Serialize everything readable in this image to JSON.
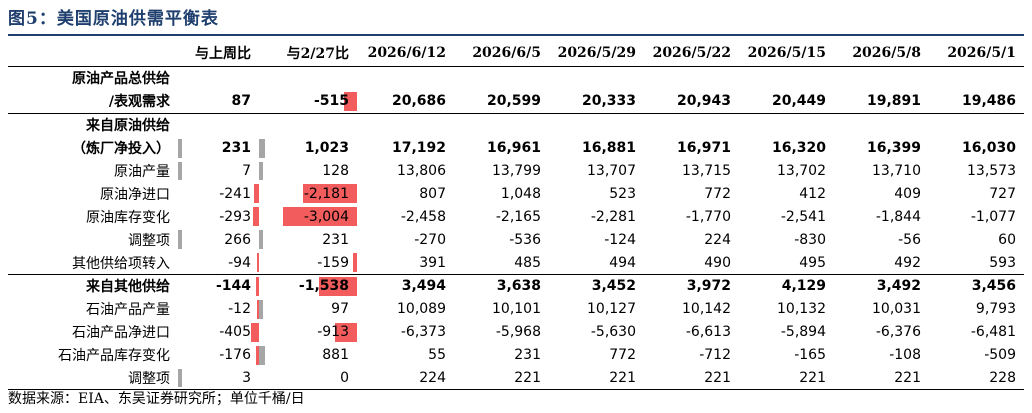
{
  "title": "图5：美国原油供需平衡表",
  "header": [
    "",
    "与上周比",
    "与2/27比",
    "2026/6/12",
    "2026/6/5",
    "2026/5/29",
    "2026/5/22",
    "2026/5/15",
    "2026/5/8",
    "2026/5/1"
  ],
  "rows": [
    {
      "label_a": "原油产品总供给",
      "label_b": "/表观需求",
      "wow": "87",
      "vs227": "-515",
      "vals": [
        "20,686",
        "20,599",
        "20,333",
        "20,943",
        "20,449",
        "19,891",
        "19,486"
      ]
    },
    {
      "label_a": "来自原油供给",
      "label_b": "（炼厂净投入）",
      "wow": "231",
      "vs227": "1,023",
      "vals": [
        "17,192",
        "16,961",
        "16,881",
        "16,971",
        "16,320",
        "16,399",
        "16,030"
      ]
    },
    {
      "label": "原油产量",
      "wow": "7",
      "vs227": "128",
      "vals": [
        "13,806",
        "13,799",
        "13,707",
        "13,715",
        "13,702",
        "13,710",
        "13,573"
      ]
    },
    {
      "label": "原油净进口",
      "wow": "-241",
      "vs227": "-2,181",
      "vals": [
        "807",
        "1,048",
        "523",
        "772",
        "412",
        "409",
        "727"
      ]
    },
    {
      "label": "原油库存变化",
      "wow": "-293",
      "vs227": "-3,004",
      "vals": [
        "-2,458",
        "-2,165",
        "-2,281",
        "-1,770",
        "-2,541",
        "-1,844",
        "-1,077"
      ]
    },
    {
      "label": "调整项",
      "wow": "266",
      "vs227": "231",
      "vals": [
        "-270",
        "-536",
        "-124",
        "224",
        "-830",
        "-56",
        "60"
      ]
    },
    {
      "label": "其他供给项转入",
      "wow": "-94",
      "vs227": "-159",
      "vals": [
        "391",
        "485",
        "494",
        "490",
        "495",
        "492",
        "593"
      ]
    },
    {
      "label": "来自其他供给",
      "wow": "-144",
      "vs227": "-1,538",
      "vals": [
        "3,494",
        "3,638",
        "3,452",
        "3,972",
        "4,129",
        "3,492",
        "3,456"
      ]
    },
    {
      "label": "石油产品产量",
      "wow": "-12",
      "vs227": "97",
      "vals": [
        "10,089",
        "10,101",
        "10,127",
        "10,142",
        "10,132",
        "10,031",
        "9,793"
      ]
    },
    {
      "label": "石油产品净进口",
      "wow": "-405",
      "vs227": "-913",
      "vals": [
        "-6,373",
        "-5,968",
        "-5,630",
        "-6,613",
        "-5,894",
        "-6,376",
        "-6,481"
      ]
    },
    {
      "label": "石油产品库存变化",
      "wow": "-176",
      "vs227": "881",
      "vals": [
        "55",
        "231",
        "772",
        "-712",
        "-165",
        "-108",
        "-509"
      ]
    },
    {
      "label": "调整项",
      "wow": "3",
      "vs227": "0",
      "vals": [
        "224",
        "221",
        "221",
        "221",
        "221",
        "221",
        "228"
      ]
    }
  ],
  "footer": "数据来源：EIA、东吴证券研究所；单位千桶/日",
  "colors": {
    "negative_bar": "#f25c5c",
    "positive_bar": "#a6a6a6",
    "title": "#1f3f6e"
  }
}
